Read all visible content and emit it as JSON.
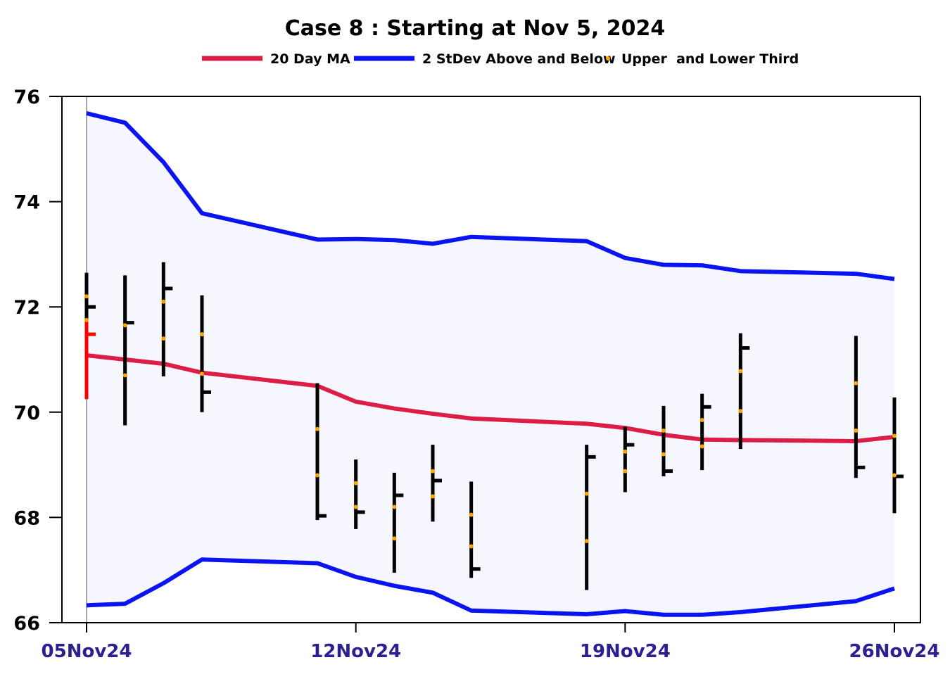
{
  "chart_data": {
    "type": "ohlc-bollinger",
    "title": "Case 8 :  Starting at  Nov 5, 2024",
    "legend": {
      "placement": "top-center",
      "entries": [
        {
          "label": "20 Day MA",
          "color": "#dc1e46",
          "kind": "line"
        },
        {
          "label": "2 StDev Above and Below",
          "color": "#0a14f0",
          "kind": "line"
        },
        {
          "label": "Upper  and Lower Third",
          "color": "#ffa500",
          "kind": "dot"
        }
      ]
    },
    "xlim": [
      "2024-11-05",
      "2024-11-26"
    ],
    "ylim": [
      66,
      76
    ],
    "yticks": [
      66,
      68,
      70,
      72,
      74,
      76
    ],
    "xticks": [
      {
        "date": "2024-11-05",
        "label": "05Nov24"
      },
      {
        "date": "2024-11-12",
        "label": "12Nov24"
      },
      {
        "date": "2024-11-19",
        "label": "19Nov24"
      },
      {
        "date": "2024-11-26",
        "label": "26Nov24"
      }
    ],
    "grid": false,
    "colors": {
      "ma": "#dc1e46",
      "band": "#0a14f0",
      "band_fill": "#f6f6fe",
      "bar": "#000000",
      "first_bar": "#ff0000",
      "third_dot": "#ffa500",
      "xtick_text": "#2a2090"
    },
    "bars": [
      {
        "date": "2024-11-05",
        "high": 72.65,
        "low": 70.25,
        "close": 71.48,
        "upper_third": 72.2,
        "lower_third": 71.75
      },
      {
        "date": "2024-11-06",
        "high": 72.6,
        "low": 69.75,
        "close": 71.7,
        "upper_third": 71.65,
        "lower_third": 70.7
      },
      {
        "date": "2024-11-07",
        "high": 72.85,
        "low": 70.68,
        "close": 72.35,
        "upper_third": 72.1,
        "lower_third": 71.4
      },
      {
        "date": "2024-11-08",
        "high": 72.22,
        "low": 70.0,
        "close": 70.38,
        "upper_third": 71.48,
        "lower_third": 70.73
      },
      {
        "date": "2024-11-11",
        "high": 70.55,
        "low": 67.95,
        "close": 68.03,
        "upper_third": 69.68,
        "lower_third": 68.8
      },
      {
        "date": "2024-11-12",
        "high": 69.1,
        "low": 67.78,
        "close": 68.1,
        "upper_third": 68.65,
        "lower_third": 68.2
      },
      {
        "date": "2024-11-13",
        "high": 68.85,
        "low": 66.95,
        "close": 68.42,
        "upper_third": 68.2,
        "lower_third": 67.6
      },
      {
        "date": "2024-11-14",
        "high": 69.38,
        "low": 67.92,
        "close": 68.7,
        "upper_third": 68.88,
        "lower_third": 68.4
      },
      {
        "date": "2024-11-15",
        "high": 68.68,
        "low": 66.85,
        "close": 67.02,
        "upper_third": 68.05,
        "lower_third": 67.45
      },
      {
        "date": "2024-11-18",
        "high": 69.38,
        "low": 66.62,
        "close": 69.15,
        "upper_third": 68.45,
        "lower_third": 67.55
      },
      {
        "date": "2024-11-19",
        "high": 69.72,
        "low": 68.48,
        "close": 69.38,
        "upper_third": 69.25,
        "lower_third": 68.88
      },
      {
        "date": "2024-11-20",
        "high": 70.12,
        "low": 68.78,
        "close": 68.88,
        "upper_third": 69.65,
        "lower_third": 69.2
      },
      {
        "date": "2024-11-21",
        "high": 70.35,
        "low": 68.9,
        "close": 70.1,
        "upper_third": 69.85,
        "lower_third": 69.35
      },
      {
        "date": "2024-11-22",
        "high": 71.5,
        "low": 69.3,
        "close": 71.22,
        "upper_third": 70.78,
        "lower_third": 70.02
      },
      {
        "date": "2024-11-25",
        "high": 71.45,
        "low": 68.75,
        "close": 68.95,
        "upper_third": 70.55,
        "lower_third": 69.65
      },
      {
        "date": "2024-11-26",
        "high": 70.28,
        "low": 68.08,
        "close": 68.78,
        "upper_third": 69.55,
        "lower_third": 68.8
      }
    ],
    "ma": [
      {
        "date": "2024-11-05",
        "value": 71.08
      },
      {
        "date": "2024-11-06",
        "value": 71.0
      },
      {
        "date": "2024-11-07",
        "value": 70.92
      },
      {
        "date": "2024-11-08",
        "value": 70.75
      },
      {
        "date": "2024-11-11",
        "value": 70.5
      },
      {
        "date": "2024-11-12",
        "value": 70.2
      },
      {
        "date": "2024-11-13",
        "value": 70.07
      },
      {
        "date": "2024-11-14",
        "value": 69.97
      },
      {
        "date": "2024-11-15",
        "value": 69.88
      },
      {
        "date": "2024-11-18",
        "value": 69.78
      },
      {
        "date": "2024-11-19",
        "value": 69.7
      },
      {
        "date": "2024-11-20",
        "value": 69.57
      },
      {
        "date": "2024-11-21",
        "value": 69.48
      },
      {
        "date": "2024-11-22",
        "value": 69.47
      },
      {
        "date": "2024-11-25",
        "value": 69.45
      },
      {
        "date": "2024-11-26",
        "value": 69.53
      }
    ],
    "upper_band": [
      {
        "date": "2024-11-05",
        "value": 75.68
      },
      {
        "date": "2024-11-06",
        "value": 75.5
      },
      {
        "date": "2024-11-07",
        "value": 74.75
      },
      {
        "date": "2024-11-08",
        "value": 73.78
      },
      {
        "date": "2024-11-11",
        "value": 73.28
      },
      {
        "date": "2024-11-12",
        "value": 73.29
      },
      {
        "date": "2024-11-13",
        "value": 73.27
      },
      {
        "date": "2024-11-14",
        "value": 73.2
      },
      {
        "date": "2024-11-15",
        "value": 73.33
      },
      {
        "date": "2024-11-18",
        "value": 73.25
      },
      {
        "date": "2024-11-19",
        "value": 72.93
      },
      {
        "date": "2024-11-20",
        "value": 72.8
      },
      {
        "date": "2024-11-21",
        "value": 72.79
      },
      {
        "date": "2024-11-22",
        "value": 72.68
      },
      {
        "date": "2024-11-25",
        "value": 72.63
      },
      {
        "date": "2024-11-26",
        "value": 72.53
      }
    ],
    "lower_band": [
      {
        "date": "2024-11-05",
        "value": 66.33
      },
      {
        "date": "2024-11-06",
        "value": 66.36
      },
      {
        "date": "2024-11-07",
        "value": 66.75
      },
      {
        "date": "2024-11-08",
        "value": 67.2
      },
      {
        "date": "2024-11-11",
        "value": 67.13
      },
      {
        "date": "2024-11-12",
        "value": 66.87
      },
      {
        "date": "2024-11-13",
        "value": 66.7
      },
      {
        "date": "2024-11-14",
        "value": 66.57
      },
      {
        "date": "2024-11-15",
        "value": 66.23
      },
      {
        "date": "2024-11-18",
        "value": 66.16
      },
      {
        "date": "2024-11-19",
        "value": 66.22
      },
      {
        "date": "2024-11-20",
        "value": 66.15
      },
      {
        "date": "2024-11-21",
        "value": 66.15
      },
      {
        "date": "2024-11-22",
        "value": 66.2
      },
      {
        "date": "2024-11-25",
        "value": 66.41
      },
      {
        "date": "2024-11-26",
        "value": 66.65
      }
    ]
  }
}
